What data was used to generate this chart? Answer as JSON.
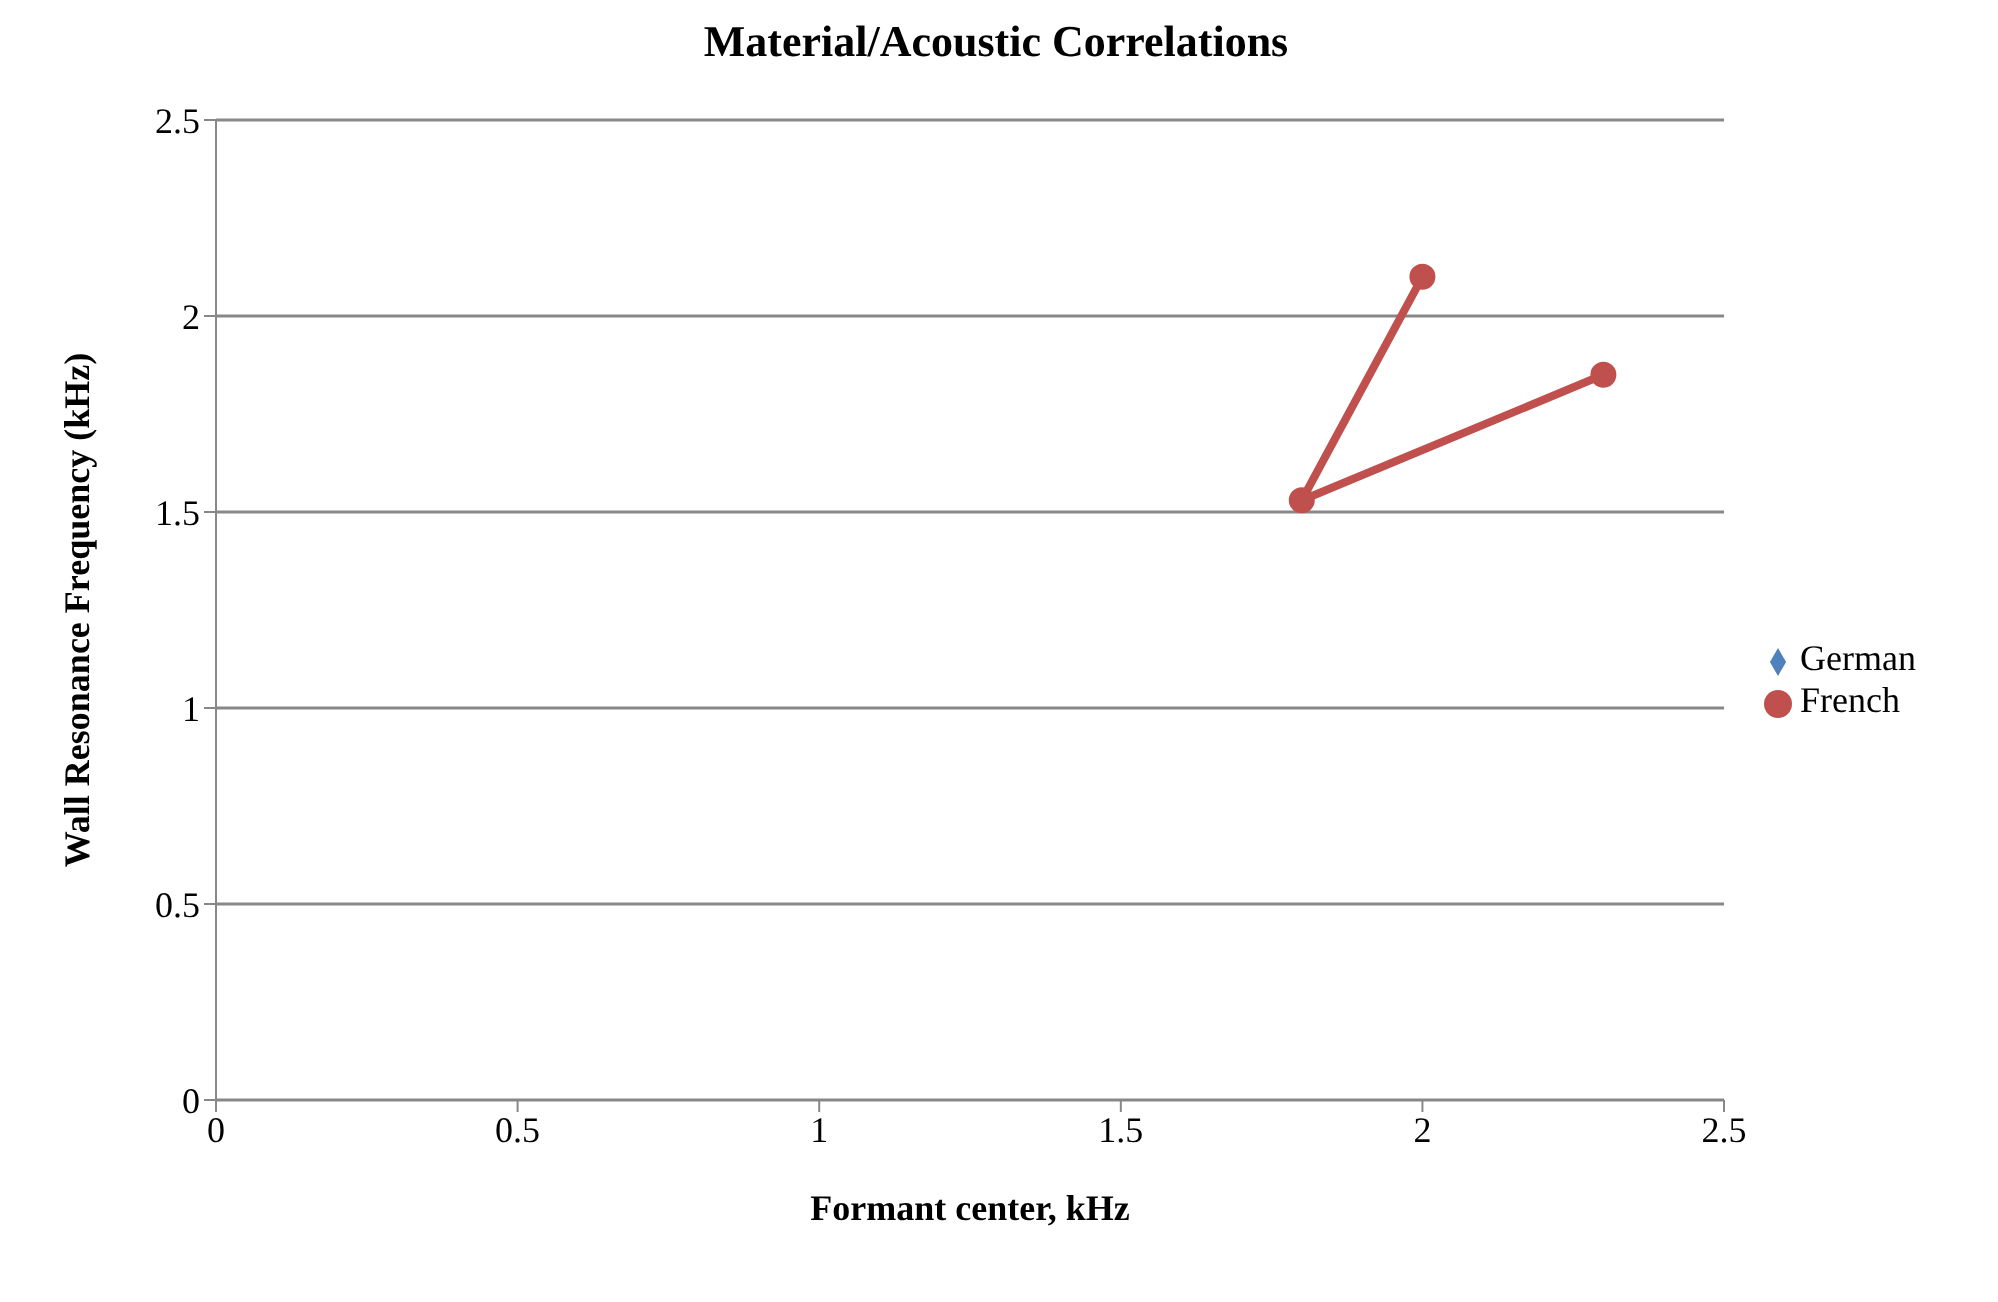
{
  "chart_data": {
    "type": "line",
    "title": "Material/Acoustic Correlations",
    "xlabel": "Formant center, kHz",
    "ylabel": "Wall Resonance Frequency (kHz)",
    "xlim": [
      0,
      2.5
    ],
    "xticks": [
      0,
      0.5,
      1,
      1.5,
      2,
      2.5
    ],
    "ylim": [
      0,
      2.5
    ],
    "yticks": [
      0,
      0.5,
      1,
      1.5,
      2,
      2.5
    ],
    "grid": "y",
    "legend": "right",
    "line_style": "solid",
    "series": [
      {
        "name": "German",
        "color": "#4f81bd",
        "marker": "diamond"
      },
      {
        "name": "French",
        "color": "#c0504d",
        "marker": "circle",
        "x": [
          2,
          1.8,
          2.3
        ],
        "values": [
          2.1,
          1.53,
          1.85
        ]
      }
    ]
  }
}
